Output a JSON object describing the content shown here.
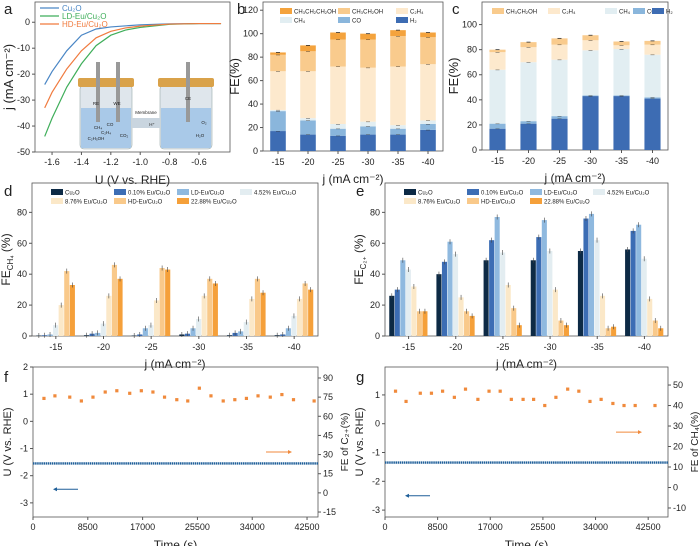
{
  "panel_labels": [
    "a",
    "b",
    "c",
    "d",
    "e",
    "f",
    "g"
  ],
  "inset": {
    "labels": [
      "RE",
      "WE",
      "CE",
      "Membrane",
      "H⁺",
      "CO",
      "CH₄",
      "C₂H₄",
      "C₂H₅OH",
      "CO₂",
      "O₂",
      "H₂O"
    ]
  },
  "chart_data": [
    {
      "id": "a",
      "type": "line",
      "xlabel": "U (V vs. RHE)",
      "ylabel": "j (mA cm⁻²)",
      "xlim": [
        -1.716,
        -0.389
      ],
      "ylim": [
        -50,
        7.8
      ],
      "xticks": [
        -1.6,
        -1.4,
        -1.2,
        -1.0,
        -0.8,
        -0.6
      ],
      "xtick_labels": [
        "-1.6",
        "-1.4",
        "-1.2",
        "-1.0",
        "-0.8",
        "-0.6"
      ],
      "yticks": [
        0,
        -10,
        -20,
        -30,
        -40,
        -50
      ],
      "ytick_labels": [
        "0",
        "-10",
        "-20",
        "-30",
        "-40",
        "-50"
      ],
      "legend_position": "top-left",
      "series": [
        {
          "name": "Cu₂O",
          "color": "#4a86c5",
          "points": [
            [
              -1.65,
              -24
            ],
            [
              -1.6,
              -19
            ],
            [
              -1.5,
              -11
            ],
            [
              -1.4,
              -5
            ],
            [
              -1.3,
              -2.6
            ],
            [
              -1.2,
              -1.8
            ],
            [
              -1.0,
              -1.0
            ],
            [
              -0.8,
              -0.6
            ],
            [
              -0.6,
              -0.5
            ],
            [
              -0.45,
              -0.5
            ]
          ]
        },
        {
          "name": "LD-Eu/Cu₂O",
          "color": "#3fae5a",
          "points": [
            [
              -1.65,
              -44
            ],
            [
              -1.6,
              -37
            ],
            [
              -1.5,
              -25
            ],
            [
              -1.4,
              -16
            ],
            [
              -1.3,
              -9
            ],
            [
              -1.2,
              -5
            ],
            [
              -1.1,
              -3
            ],
            [
              -1.0,
              -2
            ],
            [
              -0.8,
              -0.8
            ],
            [
              -0.6,
              -0.5
            ],
            [
              -0.45,
              -0.5
            ]
          ]
        },
        {
          "name": "HD-Eu/Cu₂O",
          "color": "#f07b3f",
          "points": [
            [
              -1.65,
              -33
            ],
            [
              -1.6,
              -27
            ],
            [
              -1.5,
              -18
            ],
            [
              -1.4,
              -11
            ],
            [
              -1.3,
              -6
            ],
            [
              -1.2,
              -3.5
            ],
            [
              -1.1,
              -2.2
            ],
            [
              -1.0,
              -1.5
            ],
            [
              -0.8,
              -0.7
            ],
            [
              -0.6,
              -0.5
            ],
            [
              -0.45,
              -0.5
            ]
          ]
        }
      ]
    },
    {
      "id": "b",
      "type": "bar",
      "stacked": true,
      "xlabel": "j (mA cm⁻²)",
      "ylabel": "FE(%)",
      "ylim": [
        0,
        127
      ],
      "yticks": [
        0,
        20,
        40,
        60,
        80,
        100,
        120
      ],
      "ytick_labels": [
        "0",
        "20",
        "40",
        "60",
        "80",
        "100",
        "120"
      ],
      "categories": [
        "-15",
        "-20",
        "-25",
        "-30",
        "-35",
        "-40"
      ],
      "legend_position": "top",
      "series": [
        {
          "name": "H₂",
          "color": "#3d6cb3",
          "values": [
            17,
            14,
            13,
            14,
            14,
            18
          ]
        },
        {
          "name": "CO",
          "color": "#8ab6dc",
          "values": [
            17,
            12,
            6,
            7,
            5,
            5
          ]
        },
        {
          "name": "CH₄",
          "color": "#e2eef2",
          "values": [
            1,
            2,
            4,
            4,
            3,
            3
          ]
        },
        {
          "name": "C₂H₄",
          "color": "#fde9cd",
          "values": [
            33,
            40,
            49,
            46,
            50,
            48
          ]
        },
        {
          "name": "CH₃CH₂OH",
          "color": "#f9cb8d",
          "values": [
            14,
            17,
            23,
            24,
            26,
            23
          ]
        },
        {
          "name": "CH₃CH₂CH₂OH",
          "color": "#f4a33d",
          "values": [
            2,
            5,
            6,
            5,
            5,
            4
          ]
        }
      ],
      "legend_order": [
        5,
        4,
        3,
        2,
        1,
        0
      ]
    },
    {
      "id": "c",
      "type": "bar",
      "stacked": true,
      "xlabel": "j (mA cm⁻²)",
      "ylabel": "FE(%)",
      "ylim": [
        0,
        118
      ],
      "yticks": [
        0,
        20,
        40,
        60,
        80,
        100
      ],
      "ytick_labels": [
        "0",
        "20",
        "40",
        "60",
        "80",
        "100"
      ],
      "categories": [
        "-15",
        "-20",
        "-25",
        "-30",
        "-35",
        "-40"
      ],
      "legend_position": "top",
      "series": [
        {
          "name": "H₂",
          "color": "#3d6cb3",
          "values": [
            17,
            21,
            25,
            43,
            43,
            41
          ]
        },
        {
          "name": "CO",
          "color": "#8ab6dc",
          "values": [
            4,
            2,
            2,
            0.5,
            0.5,
            1
          ]
        },
        {
          "name": "CH₄",
          "color": "#e2eef2",
          "values": [
            43,
            47,
            45,
            36,
            37,
            34
          ]
        },
        {
          "name": "C₂H₄",
          "color": "#fde9cd",
          "values": [
            14,
            12,
            12,
            8,
            3,
            8
          ]
        },
        {
          "name": "CH₃CH₂OH",
          "color": "#f9cb8d",
          "values": [
            2,
            4,
            5,
            4,
            3,
            3
          ]
        }
      ],
      "legend_order": [
        4,
        3,
        2,
        1,
        0
      ]
    },
    {
      "id": "d",
      "type": "bar",
      "xlabel": "j (mA cm⁻²)",
      "ylabel": "FE",
      "ylabel_sub": "CH₄",
      "ylabel_suffix": " (%)",
      "ylim": [
        0,
        99
      ],
      "yticks": [
        0,
        20,
        40,
        60,
        80
      ],
      "ytick_labels": [
        "0",
        "20",
        "40",
        "60",
        "80"
      ],
      "categories": [
        "-15",
        "-20",
        "-25",
        "-30",
        "-35",
        "-40"
      ],
      "legend_position": "top-left",
      "series": [
        {
          "name": "Cu₂O",
          "color": "#0d2a45",
          "values": [
            0.3,
            0.5,
            0.3,
            1,
            0.5,
            0.5
          ]
        },
        {
          "name": "0.10% Eu/Cu₂O",
          "color": "#3c6db4",
          "values": [
            0.5,
            1.5,
            1,
            1.5,
            2,
            1
          ]
        },
        {
          "name": "LD-Eu/Cu₂O",
          "color": "#8fb9df",
          "values": [
            1,
            2,
            5,
            5,
            3,
            5
          ]
        },
        {
          "name": "4.52% Eu/Cu₂O",
          "color": "#e3edf1",
          "values": [
            7,
            8,
            7,
            11,
            9,
            13
          ]
        },
        {
          "name": "8.76% Eu/Cu₂O",
          "color": "#fbe8c8",
          "values": [
            20,
            26,
            23,
            26,
            24,
            24
          ]
        },
        {
          "name": "HD-Eu/Cu₂O",
          "color": "#f9c98a",
          "values": [
            42,
            46,
            44,
            37,
            37,
            34
          ]
        },
        {
          "name": "22.88% Eu/Cu₂O",
          "color": "#f5a03a",
          "values": [
            33,
            37,
            43,
            34,
            28,
            30
          ]
        }
      ]
    },
    {
      "id": "e",
      "type": "bar",
      "xlabel": "j (mA cm⁻²)",
      "ylabel": "FE",
      "ylabel_sub": "C₂₊",
      "ylabel_suffix": " (%)",
      "ylim": [
        0,
        99
      ],
      "yticks": [
        0,
        20,
        40,
        60,
        80
      ],
      "ytick_labels": [
        "0",
        "20",
        "40",
        "60",
        "80"
      ],
      "categories": [
        "-15",
        "-20",
        "-25",
        "-30",
        "-35",
        "-40"
      ],
      "legend_position": "top-left",
      "series": [
        {
          "name": "Cu₂O",
          "color": "#0d2a45",
          "values": [
            26,
            40,
            49,
            49,
            55,
            56
          ]
        },
        {
          "name": "0.10% Eu/Cu₂O",
          "color": "#3c6db4",
          "values": [
            30,
            48,
            62,
            64,
            76,
            68
          ]
        },
        {
          "name": "LD-Eu/Cu₂O",
          "color": "#8fb9df",
          "values": [
            49,
            61,
            77,
            75,
            79,
            72
          ]
        },
        {
          "name": "4.52% Eu/Cu₂O",
          "color": "#e3edf1",
          "values": [
            43,
            53,
            54,
            55,
            62,
            50
          ]
        },
        {
          "name": "8.76% Eu/Cu₂O",
          "color": "#fbe8c8",
          "values": [
            32,
            25,
            33,
            30,
            26,
            24
          ]
        },
        {
          "name": "HD-Eu/Cu₂O",
          "color": "#f9c98a",
          "values": [
            16,
            16,
            18,
            10,
            5,
            10
          ]
        },
        {
          "name": "22.88% Eu/Cu₂O",
          "color": "#f5a03a",
          "values": [
            16,
            13,
            7,
            7,
            6,
            5
          ]
        }
      ]
    },
    {
      "id": "f",
      "type": "scatter",
      "xlabel": "Time (s)",
      "ylabel": "U (V vs. RHE)",
      "ylabel_right": "FE of C₂₊(%)",
      "xlim": [
        0,
        44200
      ],
      "ylim": [
        -3.52,
        2
      ],
      "ylim_right": [
        -18.9,
        98.6
      ],
      "xticks": [
        0,
        8500,
        17000,
        25500,
        34000,
        42500
      ],
      "xtick_labels": [
        "0",
        "8500",
        "17000",
        "25500",
        "34000",
        "42500"
      ],
      "yticks": [
        -3,
        -2,
        -1,
        0,
        1,
        2
      ],
      "ytick_labels": [
        "-3",
        "-2",
        "-1",
        "0",
        "1",
        "2"
      ],
      "yticks_right": [
        -15,
        0,
        15,
        30,
        45,
        60,
        75,
        90
      ],
      "ytick_labels_right": [
        "-15",
        "0",
        "15",
        "30",
        "45",
        "60",
        "75",
        "90"
      ],
      "potential": {
        "color": "#1f5f99",
        "value": -1.55
      },
      "fe": {
        "color": "#f08a3c",
        "time": [
          1700,
          3400,
          5700,
          7500,
          9300,
          11200,
          13000,
          15000,
          16800,
          18600,
          20400,
          22300,
          24000,
          25800,
          27600,
          29500,
          31300,
          33100,
          34900,
          36800,
          38600,
          40400,
          43600
        ],
        "values": [
          74,
          76,
          75,
          72,
          75,
          79,
          80,
          78,
          80,
          79,
          75,
          73,
          72,
          82,
          76,
          72,
          73,
          74,
          76,
          75,
          77,
          73,
          72
        ]
      }
    },
    {
      "id": "g",
      "type": "scatter",
      "xlabel": "Time (s)",
      "ylabel": "U (V vs. RHE)",
      "ylabel_right": "FE of CH₄(%)",
      "xlim": [
        0,
        45700
      ],
      "ylim": [
        -3.24,
        1.97
      ],
      "ylim_right": [
        -14.4,
        58.8
      ],
      "xticks": [
        0,
        8500,
        17000,
        25500,
        34000,
        42500
      ],
      "xtick_labels": [
        "0",
        "8500",
        "17000",
        "25500",
        "34000",
        "42500"
      ],
      "yticks": [
        -3,
        -2,
        -1,
        0,
        1
      ],
      "ytick_labels": [
        "-3",
        "-2",
        "-1",
        "0",
        "1"
      ],
      "yticks_right": [
        -10,
        0,
        10,
        20,
        30,
        40,
        50
      ],
      "ytick_labels_right": [
        "-10",
        "0",
        "10",
        "20",
        "30",
        "40",
        "50"
      ],
      "potential": {
        "color": "#1f5f99",
        "value": -1.35
      },
      "fe": {
        "color": "#f08a3c",
        "time": [
          1700,
          3400,
          5700,
          7500,
          9300,
          11200,
          13000,
          15000,
          16800,
          18600,
          20400,
          22300,
          24000,
          25800,
          27600,
          29500,
          31300,
          33100,
          34900,
          36800,
          38600,
          40400,
          43600
        ],
        "values": [
          47,
          42,
          46,
          46,
          47,
          44,
          48,
          43,
          47,
          47,
          43,
          43,
          43,
          40,
          44,
          48,
          47,
          42,
          43,
          41,
          40,
          40,
          40
        ]
      }
    }
  ]
}
